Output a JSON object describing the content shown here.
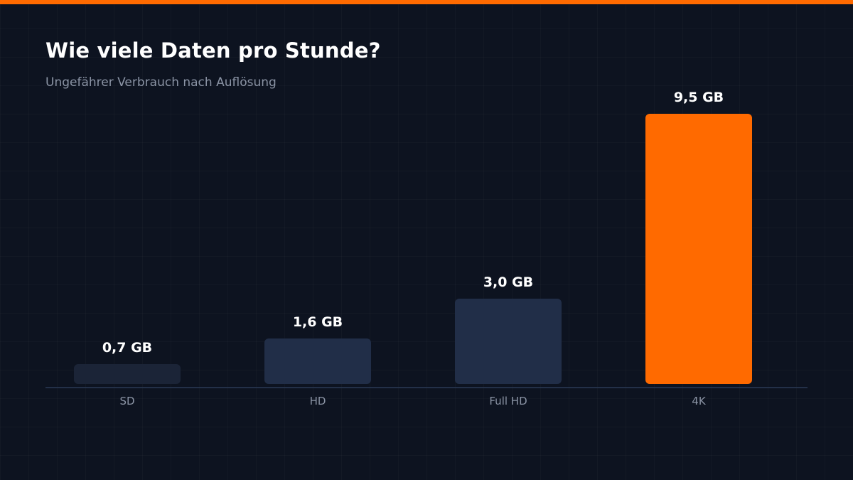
{
  "header": {
    "title": "Wie viele Daten pro Stunde?",
    "subtitle": "Ungefährer Verbrauch nach Auflösung"
  },
  "colors": {
    "background": "#0d1320",
    "accent": "#ff6a00",
    "bar_default": "#212e48",
    "bar_low": "#1b2437",
    "axis": "#2b3a55",
    "text_primary": "#ffffff",
    "text_muted": "#8b94a5"
  },
  "chart_data": {
    "type": "bar",
    "title": "Wie viele Daten pro Stunde?",
    "subtitle": "Ungefährer Verbrauch nach Auflösung",
    "categories": [
      "SD",
      "HD",
      "Full HD",
      "4K"
    ],
    "values": [
      0.7,
      1.6,
      3.0,
      9.5
    ],
    "value_labels": [
      "0,7 GB",
      "1,6 GB",
      "3,0 GB",
      "9,5 GB"
    ],
    "unit": "GB",
    "highlight_index": 3,
    "ylim": [
      0,
      9.5
    ],
    "grid": false,
    "legend": "none"
  }
}
